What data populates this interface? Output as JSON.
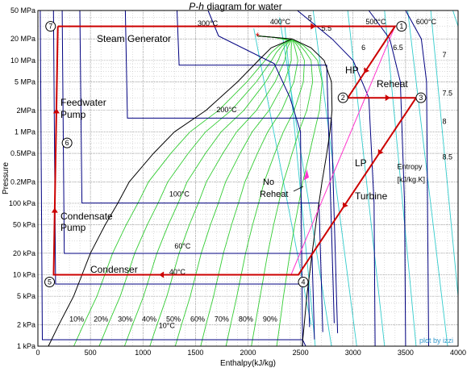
{
  "chart_data": {
    "type": "line",
    "title_italic": "P-h",
    "title_rest": " diagram for water",
    "xlabel": "Enthalpy(kJ/kg)",
    "ylabel": "Pressure",
    "xlim": [
      0,
      4000
    ],
    "ylim_kpa": [
      1,
      50000
    ],
    "y_scale": "log",
    "grid": "dotted",
    "credit": "plot by izzi",
    "x_ticks": [
      {
        "value": 0,
        "label": "0"
      },
      {
        "value": 500,
        "label": "500"
      },
      {
        "value": 1000,
        "label": "1000"
      },
      {
        "value": 1500,
        "label": "1500"
      },
      {
        "value": 2000,
        "label": "2000"
      },
      {
        "value": 2500,
        "label": "2500"
      },
      {
        "value": 3000,
        "label": "3000"
      },
      {
        "value": 3500,
        "label": "3500"
      },
      {
        "value": 4000,
        "label": "4000"
      }
    ],
    "y_ticks": [
      {
        "value": 1,
        "label": "1 kPa"
      },
      {
        "value": 2,
        "label": "2 kPa"
      },
      {
        "value": 5,
        "label": "5 kPa"
      },
      {
        "value": 10,
        "label": "10 kPa"
      },
      {
        "value": 20,
        "label": "20 kPa"
      },
      {
        "value": 50,
        "label": "50 kPa"
      },
      {
        "value": 100,
        "label": "100 kPa"
      },
      {
        "value": 200,
        "label": "0.2MPa"
      },
      {
        "value": 500,
        "label": "0.5MPa"
      },
      {
        "value": 1000,
        "label": "1 MPa"
      },
      {
        "value": 2000,
        "label": "2MPa"
      },
      {
        "value": 5000,
        "label": "5 MPa"
      },
      {
        "value": 10000,
        "label": "10 MPa"
      },
      {
        "value": 20000,
        "label": "20 MPa"
      },
      {
        "value": 50000,
        "label": "50 MPa"
      }
    ],
    "dome": {
      "liquid": [
        [
          100,
          1
        ],
        [
          200,
          2
        ],
        [
          340,
          5
        ],
        [
          420,
          10
        ],
        [
          500,
          20
        ],
        [
          640,
          50
        ],
        [
          760,
          100
        ],
        [
          870,
          200
        ],
        [
          1100,
          500
        ],
        [
          1300,
          1000
        ],
        [
          1600,
          2000
        ],
        [
          1900,
          5000
        ],
        [
          2100,
          10000
        ],
        [
          2220,
          15000
        ],
        [
          2420,
          20000
        ],
        [
          2090,
          22064
        ]
      ],
      "vapor": [
        [
          2090,
          22064
        ],
        [
          2420,
          20000
        ],
        [
          2600,
          15000
        ],
        [
          2725,
          10000
        ],
        [
          2795,
          5000
        ],
        [
          2800,
          2000
        ],
        [
          2780,
          1000
        ],
        [
          2750,
          500
        ],
        [
          2705,
          200
        ],
        [
          2675,
          100
        ],
        [
          2645,
          50
        ],
        [
          2610,
          20
        ],
        [
          2585,
          10
        ],
        [
          2560,
          5
        ],
        [
          2535,
          2
        ],
        [
          2515,
          1
        ]
      ]
    },
    "isotherms": [
      {
        "label": "10°C",
        "p": 1.23,
        "h_l": 42,
        "h_v": 2520
      },
      {
        "label": "40°C",
        "p": 7.4,
        "h_l": 168,
        "h_v": 2574
      },
      {
        "label": "60°C",
        "p": 19.9,
        "h_l": 251,
        "h_v": 2609
      },
      {
        "label": "100°C",
        "p": 101,
        "h_l": 419,
        "h_v": 2676
      },
      {
        "label": "200°C",
        "p": 1555,
        "h_l": 852,
        "h_v": 2793
      },
      {
        "label": "300°C",
        "p": 8590,
        "h_l": 1344,
        "h_v": 2749
      }
    ],
    "superheat_labels": [
      {
        "label": "300°C",
        "h": 1400,
        "p": 29000
      },
      {
        "label": "400°C",
        "h": 2210,
        "p": 32000
      },
      {
        "label": "500°C",
        "h": 3120,
        "p": 32000
      },
      {
        "label": "600°C",
        "h": 3600,
        "p": 32000
      }
    ],
    "quality_labels": [
      "10%",
      "20%",
      "30%",
      "40%",
      "50%",
      "60%",
      "70%",
      "80%",
      "90%"
    ],
    "entropy_labels": [
      "5",
      "5.5",
      "6",
      "6.5",
      "7",
      "7.5",
      "8",
      "8.5"
    ],
    "entropy_axis_label": [
      "Entropy",
      "[kJ/kg.K]"
    ],
    "states": [
      {
        "id": "1",
        "h": 3400,
        "p_kpa": 30000
      },
      {
        "id": "2",
        "h": 2950,
        "p_kpa": 3000
      },
      {
        "id": "3",
        "h": 3600,
        "p_kpa": 3000
      },
      {
        "id": "4",
        "h": 2480,
        "p_kpa": 10
      },
      {
        "id": "5",
        "h": 150,
        "p_kpa": 10
      },
      {
        "id": "6",
        "h": 170,
        "p_kpa": 700
      },
      {
        "id": "7",
        "h": 190,
        "p_kpa": 30000
      }
    ],
    "process_labels": [
      "Steam Generator",
      "HP",
      "Reheat",
      "LP",
      "Turbine",
      "Feedwater",
      "Pump",
      "Condensate",
      "Pump",
      "Condenser",
      "No",
      "Reheat"
    ],
    "no_reheat_path": [
      [
        3400,
        30000
      ],
      [
        2410,
        10
      ]
    ],
    "critical_point": {
      "h": 2090,
      "p_kpa": 22064
    },
    "colors": {
      "cycle": "#cc0000",
      "dome": "#000000",
      "isotherm": "#000080",
      "quality": "#33cc33",
      "entropy": "#33cccc",
      "no_reheat": "#ff33cc",
      "credit": "#3399cc",
      "grid": "#808080"
    }
  }
}
